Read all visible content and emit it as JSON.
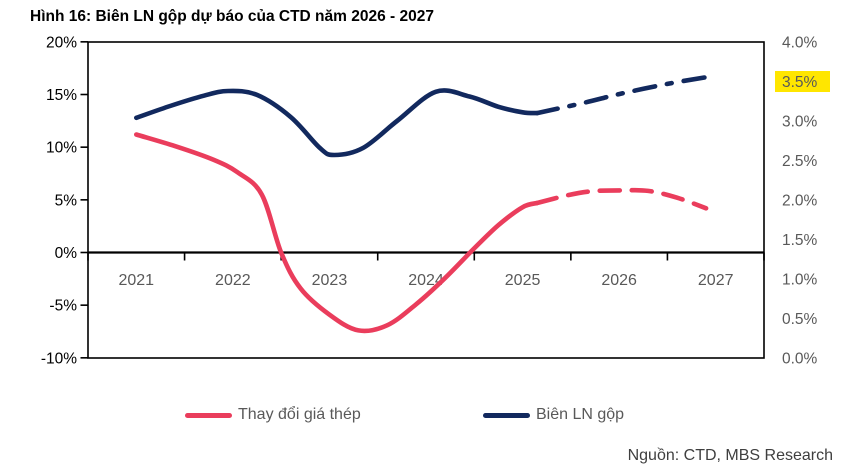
{
  "title": "Hình 16: Biên LN gộp dự báo của CTD năm 2026 - 2027",
  "source": "Nguồn: CTD, MBS Research",
  "colors": {
    "steel_series": "#EA3D5C",
    "margin_series": "#12295E",
    "axis_line": "#000000",
    "axis_text_gray": "#595959",
    "axis_text_black": "#000000",
    "highlight_yellow": "#FFE600"
  },
  "legend": [
    {
      "label": "Thay đổi giá thép",
      "color": "#EA3D5C"
    },
    {
      "label": "Biên LN gộp",
      "color": "#12295E"
    }
  ],
  "chart_data": {
    "type": "line",
    "title": "Hình 16: Biên LN gộp dự báo của CTD năm 2026 - 2027",
    "x_labels": [
      "2021",
      "2022",
      "2023",
      "2024",
      "2025",
      "2026",
      "2027"
    ],
    "left_axis": {
      "applies_to": "Thay đổi giá thép",
      "range": [
        -10,
        20
      ],
      "ticks": [
        {
          "label": "20%",
          "value": 20
        },
        {
          "label": "15%",
          "value": 15
        },
        {
          "label": "10%",
          "value": 10
        },
        {
          "label": "5%",
          "value": 5
        },
        {
          "label": "0%",
          "value": 0
        },
        {
          "label": "-5%",
          "value": -5
        },
        {
          "label": "-10%",
          "value": -10
        }
      ]
    },
    "right_axis": {
      "applies_to": "Biên LN gộp",
      "range": [
        0,
        4
      ],
      "highlight_label": "3.5%",
      "ticks": [
        {
          "label": "4.0%",
          "value": 4.0
        },
        {
          "label": "3.5%",
          "value": 3.5
        },
        {
          "label": "3.0%",
          "value": 3.0
        },
        {
          "label": "2.5%",
          "value": 2.5
        },
        {
          "label": "2.0%",
          "value": 2.0
        },
        {
          "label": "1.5%",
          "value": 1.5
        },
        {
          "label": "1.0%",
          "value": 1.0
        },
        {
          "label": "0.5%",
          "value": 0.5
        },
        {
          "label": "0.0%",
          "value": 0.0
        }
      ]
    },
    "forecast_note": "dashed segments = forecast (2026 - 2027)",
    "series": [
      {
        "name": "Thay đổi giá thép",
        "axis": "left",
        "unit": "%",
        "color": "#EA3D5C",
        "values_by_year": [
          11,
          8,
          -7,
          -3,
          4.7,
          6,
          4.2
        ],
        "curve_solid": [
          [
            2021,
            11.2
          ],
          [
            2021.4,
            10.1
          ],
          [
            2021.8,
            8.8
          ],
          [
            2022.05,
            7.6
          ],
          [
            2022.3,
            5.5
          ],
          [
            2022.5,
            0
          ],
          [
            2022.7,
            -3.4
          ],
          [
            2023,
            -5.9
          ],
          [
            2023.3,
            -7.4
          ],
          [
            2023.6,
            -6.9
          ],
          [
            2023.9,
            -4.9
          ],
          [
            2024.2,
            -2.4
          ],
          [
            2024.5,
            0.4
          ],
          [
            2024.75,
            2.6
          ],
          [
            2025,
            4.3
          ],
          [
            2025.15,
            4.7
          ]
        ],
        "curve_dashed": [
          [
            2025.15,
            4.7
          ],
          [
            2025.45,
            5.4
          ],
          [
            2025.7,
            5.8
          ],
          [
            2026,
            5.9
          ],
          [
            2026.3,
            5.85
          ],
          [
            2026.6,
            5.2
          ],
          [
            2026.9,
            4.2
          ]
        ]
      },
      {
        "name": "Biên LN gộp",
        "axis": "right",
        "unit": "%",
        "color": "#12295E",
        "values_by_year": [
          3.0,
          3.4,
          2.6,
          3.4,
          3.1,
          3.4,
          3.5
        ],
        "curve_solid": [
          [
            2021,
            3.04
          ],
          [
            2021.35,
            3.19
          ],
          [
            2021.7,
            3.32
          ],
          [
            2021.95,
            3.38
          ],
          [
            2022.25,
            3.33
          ],
          [
            2022.6,
            3.05
          ],
          [
            2022.9,
            2.66
          ],
          [
            2023.05,
            2.57
          ],
          [
            2023.35,
            2.66
          ],
          [
            2023.7,
            3.0
          ],
          [
            2024.1,
            3.37
          ],
          [
            2024.45,
            3.31
          ],
          [
            2024.75,
            3.18
          ],
          [
            2025,
            3.11
          ],
          [
            2025.15,
            3.1
          ]
        ],
        "curve_dashed": [
          [
            2025.15,
            3.1
          ],
          [
            2025.6,
            3.22
          ],
          [
            2026,
            3.34
          ],
          [
            2026.5,
            3.47
          ],
          [
            2026.93,
            3.56
          ]
        ]
      }
    ]
  }
}
